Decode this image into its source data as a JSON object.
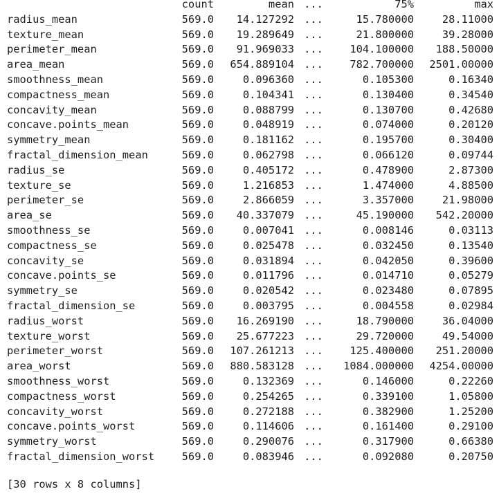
{
  "table": {
    "headers": {
      "index": "",
      "count": "count",
      "mean": "mean",
      "ellipsis": "...",
      "p75": "75%",
      "max": "max"
    },
    "rows": [
      {
        "name": "radius_mean",
        "count": "569.0",
        "mean": "14.127292",
        "ellipsis": "...",
        "p75": "15.780000",
        "max": "28.11000"
      },
      {
        "name": "texture_mean",
        "count": "569.0",
        "mean": "19.289649",
        "ellipsis": "...",
        "p75": "21.800000",
        "max": "39.28000"
      },
      {
        "name": "perimeter_mean",
        "count": "569.0",
        "mean": "91.969033",
        "ellipsis": "...",
        "p75": "104.100000",
        "max": "188.50000"
      },
      {
        "name": "area_mean",
        "count": "569.0",
        "mean": "654.889104",
        "ellipsis": "...",
        "p75": "782.700000",
        "max": "2501.00000"
      },
      {
        "name": "smoothness_mean",
        "count": "569.0",
        "mean": "0.096360",
        "ellipsis": "...",
        "p75": "0.105300",
        "max": "0.16340"
      },
      {
        "name": "compactness_mean",
        "count": "569.0",
        "mean": "0.104341",
        "ellipsis": "...",
        "p75": "0.130400",
        "max": "0.34540"
      },
      {
        "name": "concavity_mean",
        "count": "569.0",
        "mean": "0.088799",
        "ellipsis": "...",
        "p75": "0.130700",
        "max": "0.42680"
      },
      {
        "name": "concave.points_mean",
        "count": "569.0",
        "mean": "0.048919",
        "ellipsis": "...",
        "p75": "0.074000",
        "max": "0.20120"
      },
      {
        "name": "symmetry_mean",
        "count": "569.0",
        "mean": "0.181162",
        "ellipsis": "...",
        "p75": "0.195700",
        "max": "0.30400"
      },
      {
        "name": "fractal_dimension_mean",
        "count": "569.0",
        "mean": "0.062798",
        "ellipsis": "...",
        "p75": "0.066120",
        "max": "0.09744"
      },
      {
        "name": "radius_se",
        "count": "569.0",
        "mean": "0.405172",
        "ellipsis": "...",
        "p75": "0.478900",
        "max": "2.87300"
      },
      {
        "name": "texture_se",
        "count": "569.0",
        "mean": "1.216853",
        "ellipsis": "...",
        "p75": "1.474000",
        "max": "4.88500"
      },
      {
        "name": "perimeter_se",
        "count": "569.0",
        "mean": "2.866059",
        "ellipsis": "...",
        "p75": "3.357000",
        "max": "21.98000"
      },
      {
        "name": "area_se",
        "count": "569.0",
        "mean": "40.337079",
        "ellipsis": "...",
        "p75": "45.190000",
        "max": "542.20000"
      },
      {
        "name": "smoothness_se",
        "count": "569.0",
        "mean": "0.007041",
        "ellipsis": "...",
        "p75": "0.008146",
        "max": "0.03113"
      },
      {
        "name": "compactness_se",
        "count": "569.0",
        "mean": "0.025478",
        "ellipsis": "...",
        "p75": "0.032450",
        "max": "0.13540"
      },
      {
        "name": "concavity_se",
        "count": "569.0",
        "mean": "0.031894",
        "ellipsis": "...",
        "p75": "0.042050",
        "max": "0.39600"
      },
      {
        "name": "concave.points_se",
        "count": "569.0",
        "mean": "0.011796",
        "ellipsis": "...",
        "p75": "0.014710",
        "max": "0.05279"
      },
      {
        "name": "symmetry_se",
        "count": "569.0",
        "mean": "0.020542",
        "ellipsis": "...",
        "p75": "0.023480",
        "max": "0.07895"
      },
      {
        "name": "fractal_dimension_se",
        "count": "569.0",
        "mean": "0.003795",
        "ellipsis": "...",
        "p75": "0.004558",
        "max": "0.02984"
      },
      {
        "name": "radius_worst",
        "count": "569.0",
        "mean": "16.269190",
        "ellipsis": "...",
        "p75": "18.790000",
        "max": "36.04000"
      },
      {
        "name": "texture_worst",
        "count": "569.0",
        "mean": "25.677223",
        "ellipsis": "...",
        "p75": "29.720000",
        "max": "49.54000"
      },
      {
        "name": "perimeter_worst",
        "count": "569.0",
        "mean": "107.261213",
        "ellipsis": "...",
        "p75": "125.400000",
        "max": "251.20000"
      },
      {
        "name": "area_worst",
        "count": "569.0",
        "mean": "880.583128",
        "ellipsis": "...",
        "p75": "1084.000000",
        "max": "4254.00000"
      },
      {
        "name": "smoothness_worst",
        "count": "569.0",
        "mean": "0.132369",
        "ellipsis": "...",
        "p75": "0.146000",
        "max": "0.22260"
      },
      {
        "name": "compactness_worst",
        "count": "569.0",
        "mean": "0.254265",
        "ellipsis": "...",
        "p75": "0.339100",
        "max": "1.05800"
      },
      {
        "name": "concavity_worst",
        "count": "569.0",
        "mean": "0.272188",
        "ellipsis": "...",
        "p75": "0.382900",
        "max": "1.25200"
      },
      {
        "name": "concave.points_worst",
        "count": "569.0",
        "mean": "0.114606",
        "ellipsis": "...",
        "p75": "0.161400",
        "max": "0.29100"
      },
      {
        "name": "symmetry_worst",
        "count": "569.0",
        "mean": "0.290076",
        "ellipsis": "...",
        "p75": "0.317900",
        "max": "0.66380"
      },
      {
        "name": "fractal_dimension_worst",
        "count": "569.0",
        "mean": "0.083946",
        "ellipsis": "...",
        "p75": "0.092080",
        "max": "0.20750"
      }
    ]
  },
  "footer": "[30 rows x 8 columns]"
}
